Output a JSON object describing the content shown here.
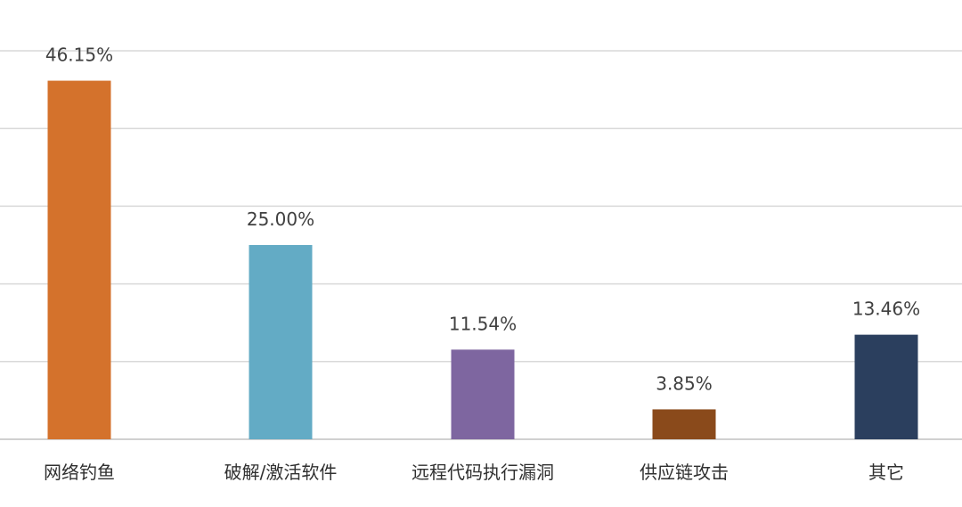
{
  "chart_data": {
    "type": "bar",
    "categories": [
      "网络钓鱼",
      "破解/激活软件",
      "远程代码执行漏洞",
      "供应链攻击",
      "其它"
    ],
    "values": [
      46.15,
      25.0,
      11.54,
      3.85,
      13.46
    ],
    "data_labels": [
      "46.15%",
      "25.00%",
      "11.54%",
      "3.85%",
      "13.46%"
    ],
    "colors": [
      "#D4722C",
      "#63ABC5",
      "#7E66A0",
      "#8A4A1B",
      "#2B3F5E"
    ],
    "ylim": [
      0,
      50
    ],
    "gridlines": [
      10,
      20,
      30,
      40,
      50
    ],
    "grid": true,
    "legend": "none"
  }
}
